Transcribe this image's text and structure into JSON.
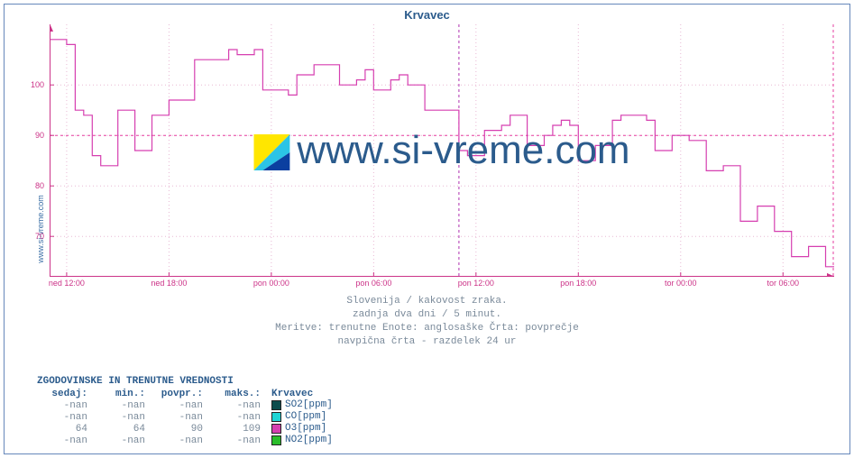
{
  "title": "Krvavec",
  "site_label": "www.si-vreme.com",
  "watermark": "www.si-vreme.com",
  "colors": {
    "frame": "#6688bb",
    "title": "#2b5b8c",
    "tick_text": "#cc3388",
    "caption_text": "#7a8a9a",
    "grid": "#e8b8d4",
    "hline": "#e63fa0",
    "vline": "#b030b0",
    "series_line": "#d63fb0",
    "axis": "#cc3388",
    "watermark": "#2b5b8c"
  },
  "chart": {
    "type": "line-step",
    "x": {
      "min": 0,
      "max": 46,
      "ticks": [
        {
          "pos": 1,
          "label": "ned 12:00"
        },
        {
          "pos": 7,
          "label": "ned 18:00"
        },
        {
          "pos": 13,
          "label": "pon 00:00"
        },
        {
          "pos": 19,
          "label": "pon 06:00"
        },
        {
          "pos": 25,
          "label": "pon 12:00"
        },
        {
          "pos": 31,
          "label": "pon 18:00"
        },
        {
          "pos": 37,
          "label": "tor 00:00"
        },
        {
          "pos": 43,
          "label": "tor 06:00"
        }
      ],
      "vline_at": 24
    },
    "y": {
      "min": 62,
      "max": 112,
      "ticks": [
        70,
        80,
        90,
        100
      ],
      "hline_at": 90
    },
    "series": [
      {
        "name": "O3[ppm]",
        "color": "#d63fb0",
        "points": [
          [
            0,
            109
          ],
          [
            0.5,
            109
          ],
          [
            1,
            108
          ],
          [
            1.5,
            95
          ],
          [
            2,
            94
          ],
          [
            2.5,
            86
          ],
          [
            3,
            84
          ],
          [
            3.5,
            84
          ],
          [
            4,
            95
          ],
          [
            4.5,
            95
          ],
          [
            5,
            87
          ],
          [
            5.5,
            87
          ],
          [
            6,
            94
          ],
          [
            6.5,
            94
          ],
          [
            7,
            97
          ],
          [
            7.5,
            97
          ],
          [
            8,
            97
          ],
          [
            8.5,
            105
          ],
          [
            9,
            105
          ],
          [
            9.5,
            105
          ],
          [
            10,
            105
          ],
          [
            10.5,
            107
          ],
          [
            11,
            106
          ],
          [
            11.5,
            106
          ],
          [
            12,
            107
          ],
          [
            12.5,
            99
          ],
          [
            13,
            99
          ],
          [
            13.5,
            99
          ],
          [
            14,
            98
          ],
          [
            14.5,
            102
          ],
          [
            15,
            102
          ],
          [
            15.5,
            104
          ],
          [
            16,
            104
          ],
          [
            16.5,
            104
          ],
          [
            17,
            100
          ],
          [
            17.5,
            100
          ],
          [
            18,
            101
          ],
          [
            18.5,
            103
          ],
          [
            19,
            99
          ],
          [
            19.5,
            99
          ],
          [
            20,
            101
          ],
          [
            20.5,
            102
          ],
          [
            21,
            100
          ],
          [
            21.5,
            100
          ],
          [
            22,
            95
          ],
          [
            22.5,
            95
          ],
          [
            23,
            95
          ],
          [
            23.5,
            95
          ],
          [
            24,
            87
          ],
          [
            24.5,
            86
          ],
          [
            25,
            86
          ],
          [
            25.5,
            91
          ],
          [
            26,
            91
          ],
          [
            26.5,
            92
          ],
          [
            27,
            94
          ],
          [
            27.5,
            94
          ],
          [
            28,
            88
          ],
          [
            28.5,
            88
          ],
          [
            29,
            90
          ],
          [
            29.5,
            92
          ],
          [
            30,
            93
          ],
          [
            30.5,
            92
          ],
          [
            31,
            85
          ],
          [
            31.5,
            85
          ],
          [
            32,
            88
          ],
          [
            32.5,
            88
          ],
          [
            33,
            93
          ],
          [
            33.5,
            94
          ],
          [
            34,
            94
          ],
          [
            34.5,
            94
          ],
          [
            35,
            93
          ],
          [
            35.5,
            87
          ],
          [
            36,
            87
          ],
          [
            36.5,
            90
          ],
          [
            37,
            90
          ],
          [
            37.5,
            89
          ],
          [
            38,
            89
          ],
          [
            38.5,
            83
          ],
          [
            39,
            83
          ],
          [
            39.5,
            84
          ],
          [
            40,
            84
          ],
          [
            40.5,
            73
          ],
          [
            41,
            73
          ],
          [
            41.5,
            76
          ],
          [
            42,
            76
          ],
          [
            42.5,
            71
          ],
          [
            43,
            71
          ],
          [
            43.5,
            66
          ],
          [
            44,
            66
          ],
          [
            44.5,
            68
          ],
          [
            45,
            68
          ],
          [
            45.5,
            64
          ],
          [
            46,
            64
          ]
        ]
      }
    ]
  },
  "caption": {
    "l1": "Slovenija / kakovost zraka.",
    "l2": "zadnja dva dni / 5 minut.",
    "l3": "Meritve: trenutne  Enote: anglosaške  Črta: povprečje",
    "l4": "navpična črta - razdelek 24 ur"
  },
  "legend": {
    "title": "ZGODOVINSKE IN TRENUTNE VREDNOSTI",
    "columns": [
      "sedaj:",
      "min.:",
      "povpr.:",
      "maks.:",
      "Krvavec"
    ],
    "rows": [
      {
        "sedaj": "-nan",
        "min": "-nan",
        "povpr": "-nan",
        "maks": "-nan",
        "swatch": "#0d4d4d",
        "name": "SO2[ppm]"
      },
      {
        "sedaj": "-nan",
        "min": "-nan",
        "povpr": "-nan",
        "maks": "-nan",
        "swatch": "#1fd4d4",
        "name": "CO[ppm]"
      },
      {
        "sedaj": "64",
        "min": "64",
        "povpr": "90",
        "maks": "109",
        "swatch": "#d63fb0",
        "name": "O3[ppm]"
      },
      {
        "sedaj": "-nan",
        "min": "-nan",
        "povpr": "-nan",
        "maks": "-nan",
        "swatch": "#2bbd2b",
        "name": "NO2[ppm]"
      }
    ]
  },
  "logo_colors": {
    "a": "#ffe600",
    "b": "#2bc4e6",
    "c": "#0b3fa0"
  }
}
